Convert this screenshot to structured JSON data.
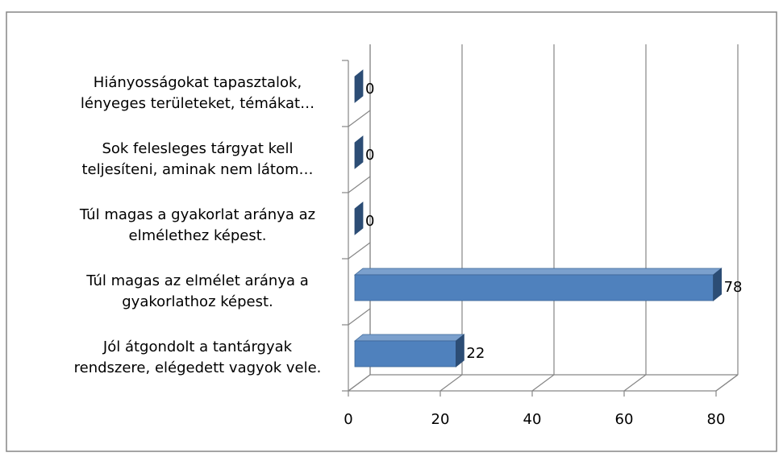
{
  "chart_data": {
    "type": "bar3d_horizontal",
    "categories": [
      [
        "Hiányosságokat tapasztalok,",
        "lényeges területeket, témákat…"
      ],
      [
        "Sok felesleges tárgyat kell",
        "teljesíteni, aminak nem látom…"
      ],
      [
        "Túl magas a gyakorlat aránya az",
        "elmélethez képest."
      ],
      [
        "Túl magas az elmélet aránya a",
        "gyakorlathoz képest."
      ],
      [
        "Jól átgondolt a tantárgyak",
        "rendszere, elégedett vagyok vele."
      ]
    ],
    "values": [
      0,
      0,
      0,
      78,
      22
    ],
    "color": "#4f81bd",
    "xlim": [
      0,
      80
    ],
    "xticks": [
      0,
      20,
      40,
      60,
      80
    ],
    "grid": true
  }
}
